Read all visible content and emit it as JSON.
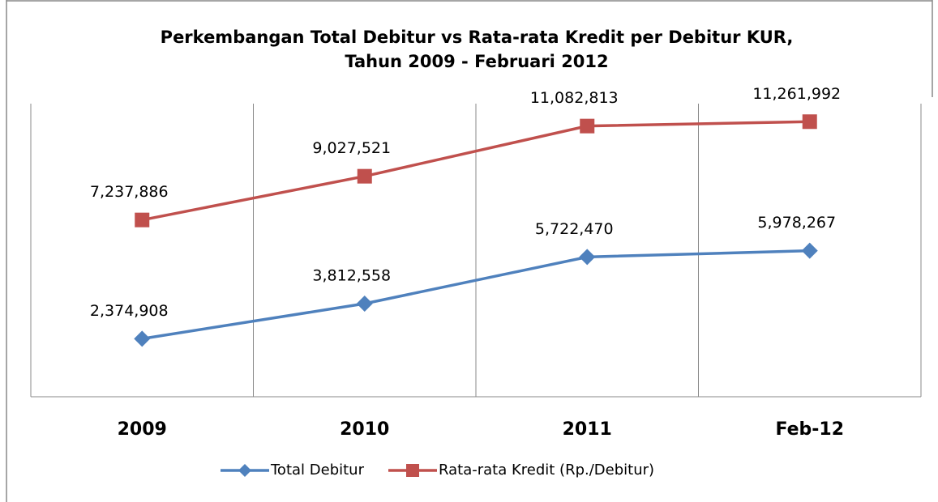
{
  "chart_data": {
    "type": "line",
    "title": [
      "Perkembangan Total Debitur vs Rata-rata Kredit per Debitur KUR,",
      "Tahun 2009 - Februari 2012"
    ],
    "categories": [
      "2009",
      "2010",
      "2011",
      "Feb-12"
    ],
    "series": [
      {
        "name": "Total Debitur",
        "color": "#4f81bd",
        "marker": "diamond",
        "values": [
          2374908,
          3812558,
          5722470,
          5978267
        ],
        "value_labels": [
          "2,374,908",
          "3,812,558",
          "5,722,470",
          "5,978,267"
        ]
      },
      {
        "name": "Rata-rata Kredit (Rp./Debitur)",
        "color": "#c0504d",
        "marker": "square",
        "values": [
          7237886,
          9027521,
          11082813,
          11261992
        ],
        "value_labels": [
          "7,237,886",
          "9,027,521",
          "11,082,813",
          "11,261,992"
        ]
      }
    ],
    "ylim": [
      0,
      12000000
    ],
    "legend": "bottom"
  }
}
